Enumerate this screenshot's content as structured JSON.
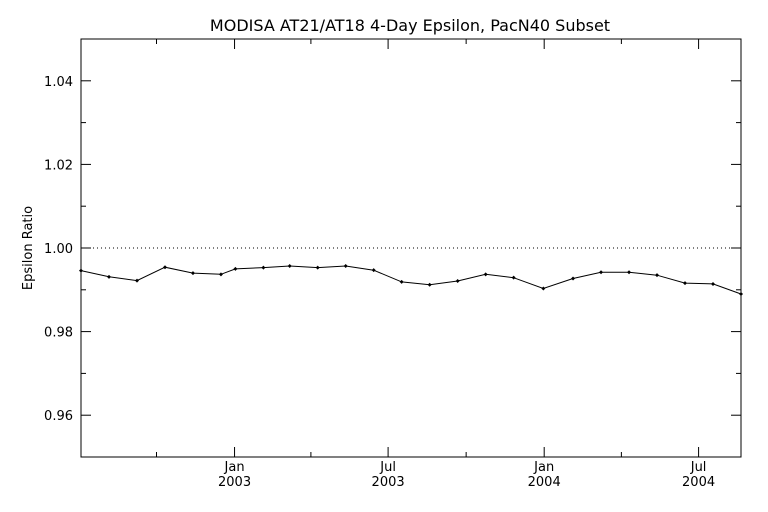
{
  "chart_data": {
    "type": "line",
    "title": "MODISA AT21/AT18 4-Day Epsilon, PacN40 Subset",
    "xlabel": "",
    "ylabel": "Epsilon Ratio",
    "ylim": [
      0.95,
      1.05
    ],
    "xlim": [
      "2002-07-04",
      "2004-08-20"
    ],
    "y_ticks": [
      "0.96",
      "0.98",
      "1.00",
      "1.02",
      "1.04"
    ],
    "x_ticks": [
      {
        "date": "2003-01-01",
        "month": "Jan",
        "year": "2003"
      },
      {
        "date": "2003-07-01",
        "month": "Jul",
        "year": "2003"
      },
      {
        "date": "2004-01-01",
        "month": "Jan",
        "year": "2004"
      },
      {
        "date": "2004-07-01",
        "month": "Jul",
        "year": "2004"
      }
    ],
    "reference_line": {
      "y": 1.0,
      "style": "dotted"
    },
    "grid": false,
    "series": [
      {
        "x": [
          "2002-07-04",
          "2002-08-06",
          "2002-09-08",
          "2002-10-11",
          "2002-11-13",
          "2002-12-16",
          "2003-01-02",
          "2003-02-04",
          "2003-03-07",
          "2003-04-09",
          "2003-05-12",
          "2003-06-14",
          "2003-07-17",
          "2003-08-19",
          "2003-09-21",
          "2003-10-24",
          "2003-11-26",
          "2003-12-31",
          "2004-02-04",
          "2004-03-08",
          "2004-04-10",
          "2004-05-13",
          "2004-06-15",
          "2004-07-18",
          "2004-08-20"
        ],
        "values": [
          0.9946,
          0.9931,
          0.9922,
          0.9954,
          0.994,
          0.9937,
          0.995,
          0.9953,
          0.9957,
          0.9953,
          0.9957,
          0.9947,
          0.9919,
          0.9912,
          0.9921,
          0.9937,
          0.9929,
          0.9903,
          0.9927,
          0.9942,
          0.9942,
          0.9935,
          0.9916,
          0.9914,
          0.989
        ]
      }
    ]
  }
}
